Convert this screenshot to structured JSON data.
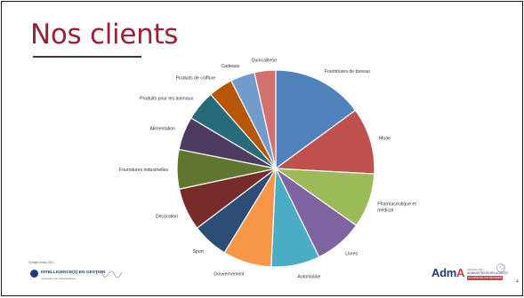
{
  "slide": {
    "title": "Nos clients",
    "page_number": "4"
  },
  "colors": {
    "title": "#9c2136",
    "background": "#ffffff"
  },
  "chart_data": {
    "type": "pie",
    "title": "",
    "start_angle_deg": 0,
    "direction": "clockwise",
    "label_placement": "outside",
    "slices": [
      {
        "label": "Fournitures de bureau",
        "value": 15.0,
        "color": "#4f81bd"
      },
      {
        "label": "Mode",
        "value": 11.0,
        "color": "#c0504d"
      },
      {
        "label": "Pharmaceutique et médical",
        "value": 9.0,
        "color": "#9bbb59"
      },
      {
        "label": "Livres",
        "value": 8.0,
        "color": "#8064a2"
      },
      {
        "label": "Automobile",
        "value": 8.0,
        "color": "#4bacc6"
      },
      {
        "label": "Gouvernement",
        "value": 8.0,
        "color": "#f79646"
      },
      {
        "label": "Sport",
        "value": 6.0,
        "color": "#2c4d75"
      },
      {
        "label": "Décoration",
        "value": 7.0,
        "color": "#772c2a"
      },
      {
        "label": "Fournitures industrielles",
        "value": 6.5,
        "color": "#5f7530"
      },
      {
        "label": "Alimentation",
        "value": 5.5,
        "color": "#4d3b62"
      },
      {
        "label": "Produits pour les animaux",
        "value": 5.0,
        "color": "#276a7c"
      },
      {
        "label": "Produits de coiffure",
        "value": 4.0,
        "color": "#b65708"
      },
      {
        "label": "Cadeaux",
        "value": 4.0,
        "color": "#729aca"
      },
      {
        "label": "Quincaillerie",
        "value": 3.5,
        "color": "#d0726f"
      }
    ]
  },
  "footer": {
    "left_caption": "Compte rendu 2021",
    "left_logo": "INTELLIGENCE(S) EN GESTION",
    "left_sub": "Association des administrateurs",
    "right_logo_a": "Adm",
    "right_logo_b": "A",
    "right_line1": "ORDRE DES",
    "right_line2": "ADMINISTRATEURS AGRÉÉS",
    "right_line3": "AU CŒUR DE VOS DÉCISIONS"
  }
}
